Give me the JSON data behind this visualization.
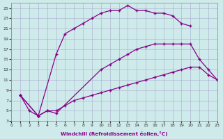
{
  "xlabel": "Windchill (Refroidissement éolien,°C)",
  "background_color": "#ceeaea",
  "line_color": "#880088",
  "xlim": [
    0,
    23
  ],
  "ylim": [
    3,
    26
  ],
  "xticks": [
    0,
    1,
    2,
    3,
    4,
    5,
    6,
    7,
    8,
    9,
    10,
    11,
    12,
    13,
    14,
    15,
    16,
    17,
    18,
    19,
    20,
    21,
    22,
    23
  ],
  "yticks": [
    3,
    5,
    7,
    9,
    11,
    13,
    15,
    17,
    19,
    21,
    23,
    25
  ],
  "series": [
    {
      "x": [
        1,
        2,
        3,
        5,
        6,
        7,
        8,
        9,
        10,
        11,
        12,
        13,
        14,
        15,
        16,
        17,
        18,
        19,
        20
      ],
      "y": [
        8,
        5,
        4,
        16,
        20,
        21,
        22,
        23,
        24,
        24.5,
        24.5,
        25.5,
        24.5,
        24.5,
        24,
        24,
        23.5,
        22,
        21.5
      ]
    },
    {
      "x": [
        1,
        3,
        4,
        5,
        10,
        11,
        12,
        13,
        14,
        15,
        16,
        17,
        18,
        19,
        20,
        21,
        22,
        23
      ],
      "y": [
        8,
        4,
        5,
        4.5,
        13,
        14,
        15,
        16,
        17,
        17.5,
        18,
        18,
        18,
        18,
        18,
        15,
        13,
        11
      ]
    },
    {
      "x": [
        1,
        3,
        4,
        5,
        6,
        7,
        8,
        9,
        10,
        11,
        12,
        13,
        14,
        15,
        16,
        17,
        18,
        19,
        20,
        21,
        22,
        23
      ],
      "y": [
        8,
        4,
        5,
        5,
        6,
        7,
        7.5,
        8,
        8.5,
        9,
        9.5,
        10,
        10.5,
        11,
        11.5,
        12,
        12.5,
        13,
        13.5,
        13.5,
        12,
        11
      ]
    }
  ]
}
